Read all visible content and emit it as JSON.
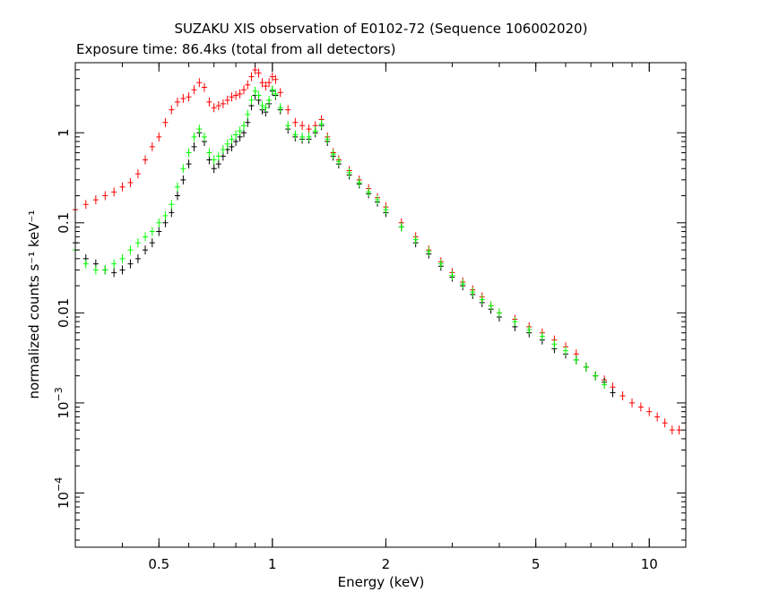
{
  "chart_data": {
    "type": "scatter",
    "title": "SUZAKU XIS observation of E0102-72 (Sequence 106002020)",
    "subtitle": "Exposure time: 86.4ks (total from all detectors)",
    "xlabel": "Energy (keV)",
    "ylabel": "normalized counts s⁻¹ keV⁻¹",
    "x_scale": "log",
    "y_scale": "log",
    "xlim": [
      0.3,
      12.5
    ],
    "ylim": [
      2.5e-05,
      6
    ],
    "x_ticks": [
      {
        "value": 0.5,
        "label": "0.5"
      },
      {
        "value": 1,
        "label": "1"
      },
      {
        "value": 2,
        "label": "2"
      },
      {
        "value": 5,
        "label": "5"
      },
      {
        "value": 10,
        "label": "10"
      }
    ],
    "y_ticks": [
      {
        "value": 1,
        "base": "1",
        "exp": ""
      },
      {
        "value": 0.1,
        "base": "0.1",
        "exp": ""
      },
      {
        "value": 0.01,
        "base": "0.01",
        "exp": ""
      },
      {
        "value": 0.001,
        "base": "10",
        "exp": "−3"
      },
      {
        "value": 0.0001,
        "base": "10",
        "exp": "−4"
      }
    ],
    "series": [
      {
        "color": "#ff0000",
        "points": [
          [
            0.3,
            0.14
          ],
          [
            0.32,
            0.16
          ],
          [
            0.34,
            0.18
          ],
          [
            0.36,
            0.2
          ],
          [
            0.38,
            0.22
          ],
          [
            0.4,
            0.25
          ],
          [
            0.42,
            0.28
          ],
          [
            0.44,
            0.35
          ],
          [
            0.46,
            0.5
          ],
          [
            0.48,
            0.7
          ],
          [
            0.5,
            0.9
          ],
          [
            0.52,
            1.3
          ],
          [
            0.54,
            1.8
          ],
          [
            0.56,
            2.2
          ],
          [
            0.58,
            2.4
          ],
          [
            0.6,
            2.5
          ],
          [
            0.62,
            3.0
          ],
          [
            0.64,
            3.6
          ],
          [
            0.66,
            3.2
          ],
          [
            0.68,
            2.2
          ],
          [
            0.7,
            1.9
          ],
          [
            0.72,
            2.0
          ],
          [
            0.74,
            2.1
          ],
          [
            0.76,
            2.3
          ],
          [
            0.78,
            2.5
          ],
          [
            0.8,
            2.6
          ],
          [
            0.82,
            2.7
          ],
          [
            0.84,
            3.0
          ],
          [
            0.86,
            3.4
          ],
          [
            0.88,
            4.2
          ],
          [
            0.9,
            5.0
          ],
          [
            0.92,
            4.6
          ],
          [
            0.94,
            3.6
          ],
          [
            0.96,
            3.3
          ],
          [
            0.98,
            3.6
          ],
          [
            1.0,
            4.2
          ],
          [
            1.02,
            3.9
          ],
          [
            1.05,
            2.8
          ],
          [
            1.1,
            1.8
          ],
          [
            1.15,
            1.3
          ],
          [
            1.2,
            1.2
          ],
          [
            1.25,
            1.1
          ],
          [
            1.3,
            1.2
          ],
          [
            1.35,
            1.4
          ],
          [
            1.4,
            0.9
          ],
          [
            1.45,
            0.6
          ],
          [
            1.5,
            0.5
          ],
          [
            1.6,
            0.38
          ],
          [
            1.7,
            0.3
          ],
          [
            1.8,
            0.24
          ],
          [
            1.9,
            0.19
          ],
          [
            2.0,
            0.15
          ],
          [
            2.2,
            0.1
          ],
          [
            2.4,
            0.07
          ],
          [
            2.6,
            0.05
          ],
          [
            2.8,
            0.037
          ],
          [
            3.0,
            0.028
          ],
          [
            3.2,
            0.022
          ],
          [
            3.4,
            0.018
          ],
          [
            3.6,
            0.015
          ],
          [
            3.8,
            0.012
          ],
          [
            4.0,
            0.01
          ],
          [
            4.4,
            0.0085
          ],
          [
            4.8,
            0.007
          ],
          [
            5.2,
            0.006
          ],
          [
            5.6,
            0.005
          ],
          [
            6.0,
            0.0042
          ],
          [
            6.4,
            0.0035
          ],
          [
            6.8,
            0.0025
          ],
          [
            7.2,
            0.002
          ],
          [
            7.6,
            0.0018
          ],
          [
            8.0,
            0.0015
          ],
          [
            8.5,
            0.0012
          ],
          [
            9.0,
            0.001
          ],
          [
            9.5,
            0.0009
          ],
          [
            10.0,
            0.0008
          ],
          [
            10.5,
            0.0007
          ],
          [
            11.0,
            0.0006
          ],
          [
            11.5,
            0.0005
          ],
          [
            12.0,
            0.0005
          ]
        ]
      },
      {
        "color": "#000000",
        "points": [
          [
            0.3,
            0.06
          ],
          [
            0.32,
            0.04
          ],
          [
            0.34,
            0.035
          ],
          [
            0.36,
            0.03
          ],
          [
            0.38,
            0.028
          ],
          [
            0.4,
            0.03
          ],
          [
            0.42,
            0.035
          ],
          [
            0.44,
            0.04
          ],
          [
            0.46,
            0.05
          ],
          [
            0.48,
            0.06
          ],
          [
            0.5,
            0.08
          ],
          [
            0.52,
            0.1
          ],
          [
            0.54,
            0.13
          ],
          [
            0.56,
            0.2
          ],
          [
            0.58,
            0.3
          ],
          [
            0.6,
            0.45
          ],
          [
            0.62,
            0.7
          ],
          [
            0.64,
            1.0
          ],
          [
            0.66,
            0.8
          ],
          [
            0.68,
            0.5
          ],
          [
            0.7,
            0.4
          ],
          [
            0.72,
            0.45
          ],
          [
            0.74,
            0.55
          ],
          [
            0.76,
            0.65
          ],
          [
            0.78,
            0.7
          ],
          [
            0.8,
            0.8
          ],
          [
            0.82,
            0.9
          ],
          [
            0.84,
            1.0
          ],
          [
            0.86,
            1.3
          ],
          [
            0.88,
            2.0
          ],
          [
            0.9,
            2.6
          ],
          [
            0.92,
            2.3
          ],
          [
            0.94,
            1.8
          ],
          [
            0.96,
            1.7
          ],
          [
            0.98,
            2.1
          ],
          [
            1.0,
            2.9
          ],
          [
            1.02,
            2.6
          ],
          [
            1.05,
            1.8
          ],
          [
            1.1,
            1.1
          ],
          [
            1.15,
            0.9
          ],
          [
            1.2,
            0.85
          ],
          [
            1.25,
            0.85
          ],
          [
            1.3,
            1.0
          ],
          [
            1.35,
            1.2
          ],
          [
            1.4,
            0.8
          ],
          [
            1.45,
            0.55
          ],
          [
            1.5,
            0.45
          ],
          [
            1.6,
            0.34
          ],
          [
            1.7,
            0.27
          ],
          [
            1.8,
            0.21
          ],
          [
            1.9,
            0.17
          ],
          [
            2.0,
            0.13
          ],
          [
            2.2,
            0.09
          ],
          [
            2.4,
            0.06
          ],
          [
            2.6,
            0.045
          ],
          [
            2.8,
            0.033
          ],
          [
            3.0,
            0.025
          ],
          [
            3.2,
            0.02
          ],
          [
            3.4,
            0.016
          ],
          [
            3.6,
            0.013
          ],
          [
            3.8,
            0.011
          ],
          [
            4.0,
            0.009
          ],
          [
            4.4,
            0.007
          ],
          [
            4.8,
            0.006
          ],
          [
            5.2,
            0.005
          ],
          [
            5.6,
            0.004
          ],
          [
            6.0,
            0.0035
          ],
          [
            6.4,
            0.003
          ],
          [
            6.8,
            0.0025
          ],
          [
            7.2,
            0.002
          ],
          [
            7.6,
            0.0017
          ],
          [
            8.0,
            0.0013
          ]
        ]
      },
      {
        "color": "#00ff00",
        "points": [
          [
            0.3,
            0.05
          ],
          [
            0.32,
            0.035
          ],
          [
            0.34,
            0.03
          ],
          [
            0.36,
            0.03
          ],
          [
            0.38,
            0.035
          ],
          [
            0.4,
            0.04
          ],
          [
            0.42,
            0.05
          ],
          [
            0.44,
            0.06
          ],
          [
            0.46,
            0.07
          ],
          [
            0.48,
            0.08
          ],
          [
            0.5,
            0.1
          ],
          [
            0.52,
            0.12
          ],
          [
            0.54,
            0.16
          ],
          [
            0.56,
            0.25
          ],
          [
            0.58,
            0.4
          ],
          [
            0.6,
            0.6
          ],
          [
            0.62,
            0.9
          ],
          [
            0.64,
            1.1
          ],
          [
            0.66,
            0.9
          ],
          [
            0.68,
            0.6
          ],
          [
            0.7,
            0.5
          ],
          [
            0.72,
            0.55
          ],
          [
            0.74,
            0.65
          ],
          [
            0.76,
            0.75
          ],
          [
            0.78,
            0.85
          ],
          [
            0.8,
            0.95
          ],
          [
            0.82,
            1.05
          ],
          [
            0.84,
            1.2
          ],
          [
            0.86,
            1.6
          ],
          [
            0.88,
            2.3
          ],
          [
            0.9,
            2.9
          ],
          [
            0.92,
            2.6
          ],
          [
            0.94,
            2.0
          ],
          [
            0.96,
            1.9
          ],
          [
            0.98,
            2.3
          ],
          [
            1.0,
            3.0
          ],
          [
            1.02,
            2.7
          ],
          [
            1.05,
            1.9
          ],
          [
            1.1,
            1.2
          ],
          [
            1.15,
            0.95
          ],
          [
            1.2,
            0.9
          ],
          [
            1.25,
            0.9
          ],
          [
            1.3,
            1.05
          ],
          [
            1.35,
            1.25
          ],
          [
            1.4,
            0.85
          ],
          [
            1.45,
            0.58
          ],
          [
            1.5,
            0.48
          ],
          [
            1.6,
            0.36
          ],
          [
            1.7,
            0.28
          ],
          [
            1.8,
            0.22
          ],
          [
            1.9,
            0.18
          ],
          [
            2.0,
            0.14
          ],
          [
            2.2,
            0.09
          ],
          [
            2.4,
            0.065
          ],
          [
            2.6,
            0.048
          ],
          [
            2.8,
            0.035
          ],
          [
            3.0,
            0.026
          ],
          [
            3.2,
            0.021
          ],
          [
            3.4,
            0.017
          ],
          [
            3.6,
            0.014
          ],
          [
            3.8,
            0.012
          ],
          [
            4.0,
            0.01
          ],
          [
            4.4,
            0.008
          ],
          [
            4.8,
            0.0065
          ],
          [
            5.2,
            0.0055
          ],
          [
            5.6,
            0.0045
          ],
          [
            6.0,
            0.0038
          ],
          [
            6.4,
            0.003
          ],
          [
            6.8,
            0.0025
          ],
          [
            7.2,
            0.002
          ],
          [
            7.6,
            0.0016
          ]
        ]
      }
    ]
  }
}
